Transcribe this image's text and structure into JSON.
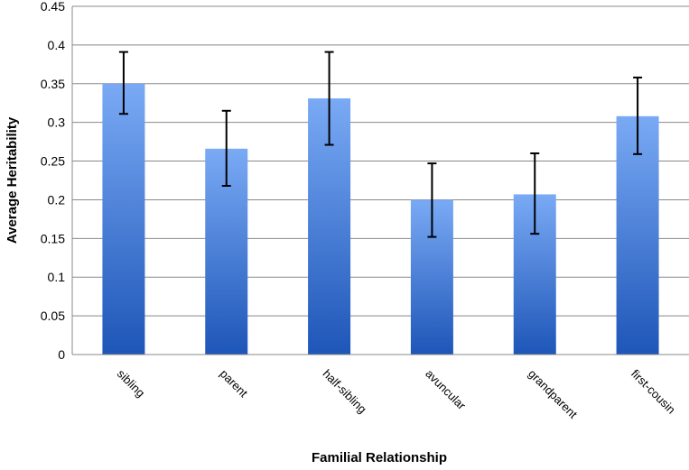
{
  "chart_data": {
    "type": "bar",
    "title": "",
    "xlabel": "Familial Relationship",
    "ylabel": "Average Heritability",
    "categories": [
      "sibling",
      "parent",
      "half-sibling",
      "avuncular",
      "grandparent",
      "first-cousin"
    ],
    "series": [
      {
        "values": [
          0.35,
          0.266,
          0.331,
          0.2,
          0.207,
          0.308
        ],
        "error_low": [
          0.311,
          0.218,
          0.271,
          0.152,
          0.156,
          0.259
        ],
        "error_high": [
          0.391,
          0.315,
          0.391,
          0.247,
          0.26,
          0.358
        ]
      }
    ],
    "ylim": [
      0,
      0.45
    ],
    "yticks": [
      "0",
      "0.05",
      "0.1",
      "0.15",
      "0.2",
      "0.25",
      "0.3",
      "0.35",
      "0.4",
      "0.45"
    ],
    "grid": true,
    "legend": "none",
    "colors": {
      "bar_top": "#7aaaf5",
      "bar_bottom": "#1e56b8",
      "grid": "#888888",
      "error_bar": "#000000"
    }
  }
}
